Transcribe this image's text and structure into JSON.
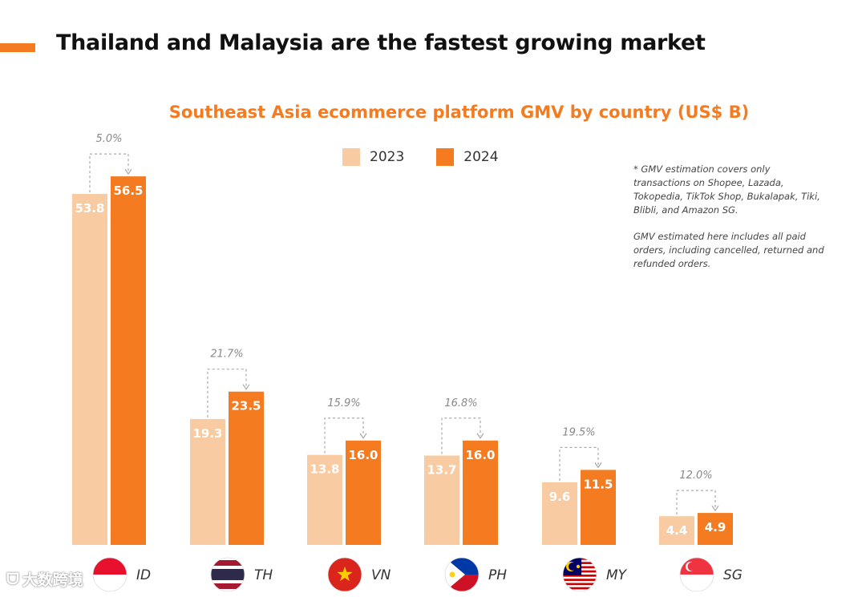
{
  "headline": "Thailand and Malaysia are the fastest growing market",
  "colors": {
    "accent": "#F47B20",
    "y2023": "#F8CBA2",
    "y2024": "#F47B20",
    "growth": "#888888"
  },
  "legend": {
    "y2023": "2023",
    "y2024": "2024"
  },
  "notes": [
    "* GMV estimation covers only transactions on Shopee, Lazada, Tokopedia, TikTok Shop, Bukalapak, Tiki, Blibli, and Amazon SG.",
    "GMV estimated here includes all paid orders, including cancelled, returned and refunded orders."
  ],
  "watermark": "大数跨境",
  "chart_data": {
    "type": "bar",
    "title": "Southeast Asia ecommerce platform GMV by country (US$ B)",
    "categories": [
      "ID",
      "TH",
      "VN",
      "PH",
      "MY",
      "SG"
    ],
    "flags": [
      "indonesia-flag",
      "thailand-flag",
      "vietnam-flag",
      "philippines-flag",
      "malaysia-flag",
      "singapore-flag"
    ],
    "series": [
      {
        "name": "2023",
        "values": [
          53.8,
          19.3,
          13.8,
          13.7,
          9.6,
          4.4
        ]
      },
      {
        "name": "2024",
        "values": [
          56.5,
          23.5,
          16.0,
          16.0,
          11.5,
          4.9
        ]
      }
    ],
    "growth": [
      "5.0%",
      "21.7%",
      "15.9%",
      "16.8%",
      "19.5%",
      "12.0%"
    ]
  }
}
